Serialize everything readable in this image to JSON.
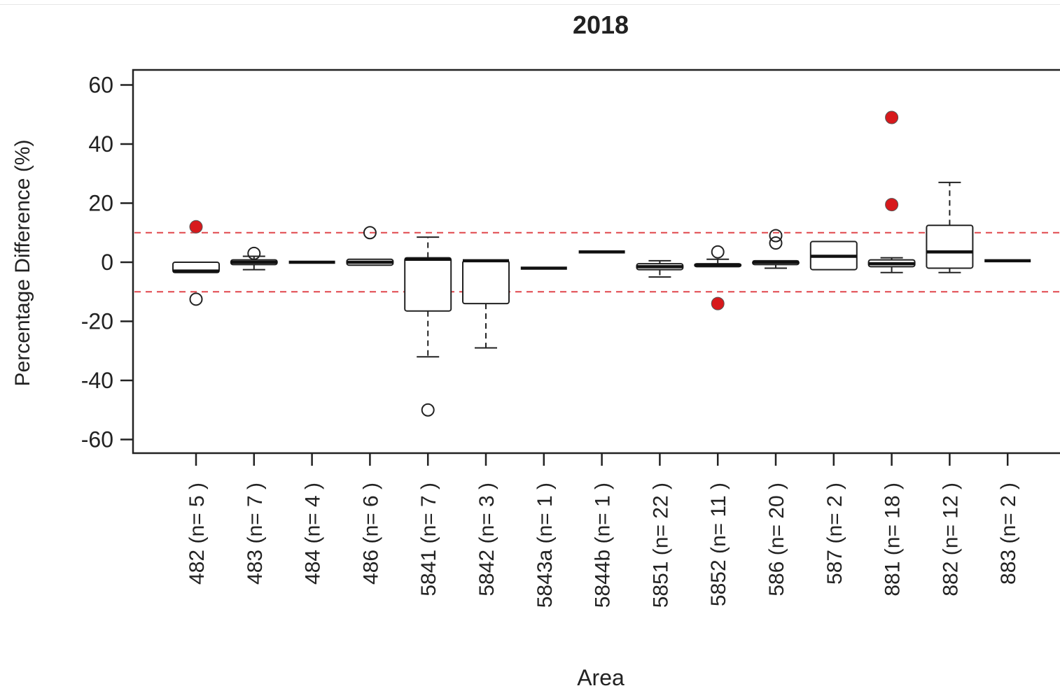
{
  "chart_data": {
    "type": "boxplot",
    "title": "2018",
    "xlabel": "Area",
    "ylabel": "Percentage Difference (%)",
    "ylim": [
      -65,
      65
    ],
    "yticks": [
      60,
      40,
      20,
      0,
      -20,
      -40,
      -60
    ],
    "reference_lines": [
      10,
      -10
    ],
    "reference_line_color": "#e0474c",
    "highlight_outlier_color": "#d7191c",
    "categories": [
      "482 (n= 5 )",
      "483 (n= 7 )",
      "484 (n= 4 )",
      "486 (n= 6 )",
      "5841 (n= 7 )",
      "5842 (n= 3 )",
      "5843a (n= 1 )",
      "5844b (n= 1 )",
      "5851 (n= 22 )",
      "5852 (n= 11 )",
      "586 (n= 20 )",
      "587 (n= 2 )",
      "881 (n= 18 )",
      "882 (n= 12 )",
      "883 (n= 2 )"
    ],
    "boxes": [
      {
        "q1": -3.5,
        "median": -3,
        "q3": 0,
        "whisker_low": -3.5,
        "whisker_high": 0,
        "outliers": [
          {
            "y": 12,
            "highlight": true
          },
          {
            "y": -12.5,
            "highlight": false
          }
        ]
      },
      {
        "q1": -0.8,
        "median": 0,
        "q3": 0.8,
        "whisker_low": -2.5,
        "whisker_high": 2,
        "outliers": [
          {
            "y": 3,
            "highlight": false
          }
        ]
      },
      {
        "q1": 0,
        "median": 0,
        "q3": 0,
        "whisker_low": 0,
        "whisker_high": 0,
        "outliers": []
      },
      {
        "q1": -1,
        "median": 0,
        "q3": 1,
        "whisker_low": -1,
        "whisker_high": 1,
        "outliers": [
          {
            "y": 10,
            "highlight": false
          }
        ]
      },
      {
        "q1": -16.5,
        "median": 1,
        "q3": 1.5,
        "whisker_low": -32,
        "whisker_high": 8.5,
        "outliers": [
          {
            "y": -50,
            "highlight": false
          }
        ]
      },
      {
        "q1": -14,
        "median": 0.5,
        "q3": 0.5,
        "whisker_low": -29,
        "whisker_high": 0.5,
        "outliers": []
      },
      {
        "q1": -2,
        "median": -2,
        "q3": -2,
        "whisker_low": -2,
        "whisker_high": -2,
        "outliers": []
      },
      {
        "q1": 3.5,
        "median": 3.5,
        "q3": 3.5,
        "whisker_low": 3.5,
        "whisker_high": 3.5,
        "outliers": []
      },
      {
        "q1": -2.5,
        "median": -1.5,
        "q3": -0.5,
        "whisker_low": -5,
        "whisker_high": 0.5,
        "outliers": []
      },
      {
        "q1": -1.5,
        "median": -1,
        "q3": -0.5,
        "whisker_low": -1.5,
        "whisker_high": 1,
        "outliers": [
          {
            "y": 3.5,
            "highlight": false
          },
          {
            "y": -14,
            "highlight": true
          }
        ]
      },
      {
        "q1": -0.8,
        "median": 0,
        "q3": 0.5,
        "whisker_low": -2,
        "whisker_high": 0.5,
        "outliers": [
          {
            "y": 9,
            "highlight": false
          },
          {
            "y": 6.5,
            "highlight": false
          }
        ]
      },
      {
        "q1": -2.5,
        "median": 2,
        "q3": 7,
        "whisker_low": -2.5,
        "whisker_high": 7,
        "outliers": []
      },
      {
        "q1": -1.5,
        "median": -0.5,
        "q3": 0.8,
        "whisker_low": -3.5,
        "whisker_high": 1.5,
        "outliers": [
          {
            "y": 49,
            "highlight": true
          },
          {
            "y": 19.5,
            "highlight": true
          }
        ]
      },
      {
        "q1": -2,
        "median": 3.5,
        "q3": 12.5,
        "whisker_low": -3.5,
        "whisker_high": 27,
        "outliers": []
      },
      {
        "q1": 0.5,
        "median": 0.5,
        "q3": 0.5,
        "whisker_low": 0.5,
        "whisker_high": 0.5,
        "outliers": []
      }
    ]
  }
}
